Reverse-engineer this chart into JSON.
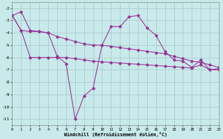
{
  "xlabel": "Windchill (Refroidissement éolien,°C)",
  "bg_color": "#c8eaea",
  "grid_color": "#aacccc",
  "line_color": "#993399",
  "x": [
    0,
    1,
    2,
    3,
    4,
    5,
    6,
    7,
    8,
    9,
    10,
    11,
    12,
    13,
    14,
    15,
    16,
    17,
    18,
    19,
    20,
    21,
    22,
    23
  ],
  "series1": [
    -2.6,
    -2.3,
    -3.8,
    -3.9,
    -4.0,
    -5.9,
    -6.5,
    -11.0,
    -9.1,
    -8.5,
    -5.0,
    -3.5,
    -3.5,
    -2.7,
    -2.6,
    -3.6,
    -4.2,
    -5.5,
    -6.2,
    -6.3,
    -6.8,
    -6.2,
    -7.0,
    -6.9
  ],
  "series2": [
    -2.6,
    -3.8,
    -3.9,
    -3.9,
    -4.0,
    -4.3,
    -4.5,
    -4.7,
    -4.9,
    -5.0,
    -5.0,
    -5.1,
    -5.2,
    -5.3,
    -5.4,
    -5.5,
    -5.6,
    -5.7,
    -5.9,
    -6.1,
    -6.3,
    -6.4,
    -6.6,
    -6.8
  ],
  "series3": [
    -2.6,
    -3.8,
    -6.0,
    -6.0,
    -6.0,
    -6.0,
    -6.0,
    -6.1,
    -6.2,
    -6.3,
    -6.35,
    -6.4,
    -6.45,
    -6.5,
    -6.55,
    -6.6,
    -6.65,
    -6.7,
    -6.75,
    -6.8,
    -6.85,
    -6.6,
    -7.0,
    -7.0
  ],
  "ylim_min": -11.5,
  "ylim_max": -1.5,
  "xlim_min": 0,
  "xlim_max": 23,
  "yticks": [
    -11,
    -10,
    -9,
    -8,
    -7,
    -6,
    -5,
    -4,
    -3,
    -2
  ],
  "xticks": [
    0,
    1,
    2,
    3,
    4,
    5,
    6,
    7,
    8,
    9,
    10,
    11,
    12,
    13,
    14,
    15,
    16,
    17,
    18,
    19,
    20,
    21,
    22,
    23
  ]
}
